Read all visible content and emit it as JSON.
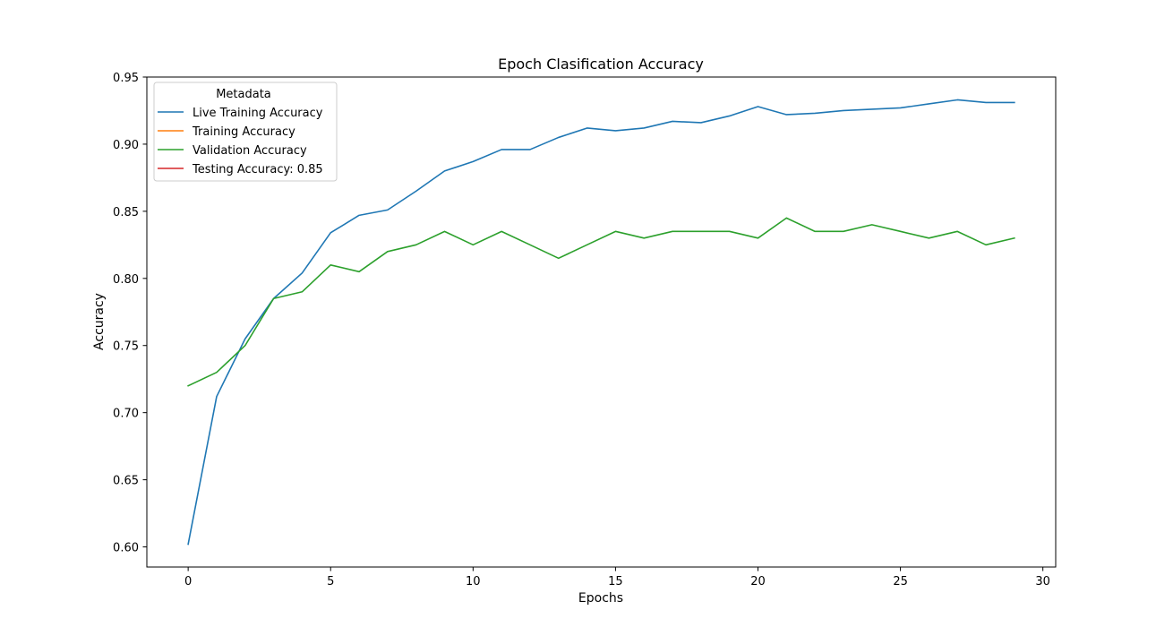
{
  "chart_data": {
    "type": "line",
    "title": "Epoch Clasification Accuracy",
    "xlabel": "Epochs",
    "ylabel": "Accuracy",
    "xlim": [
      -1.45,
      30.45
    ],
    "ylim": [
      0.585,
      0.95
    ],
    "xticks": [
      0,
      5,
      10,
      15,
      20,
      25,
      30
    ],
    "yticks": [
      0.6,
      0.65,
      0.7,
      0.75,
      0.8,
      0.85,
      0.9,
      0.95
    ],
    "ytick_labels": [
      "0.60",
      "0.65",
      "0.70",
      "0.75",
      "0.80",
      "0.85",
      "0.90",
      "0.95"
    ],
    "grid": false,
    "legend": {
      "title": "Metadata",
      "placement": "top-left"
    },
    "series": [
      {
        "name": "Live Training Accuracy",
        "color": "#1f77b4",
        "x": [
          0,
          1,
          2,
          3,
          4,
          5,
          6,
          7,
          8,
          9,
          10,
          11,
          12,
          13,
          14,
          15,
          16,
          17,
          18,
          19,
          20,
          21,
          22,
          23,
          24,
          25,
          26,
          27,
          28,
          29
        ],
        "values": [
          0.602,
          0.712,
          0.755,
          0.785,
          0.804,
          0.834,
          0.847,
          0.851,
          0.865,
          0.88,
          0.887,
          0.896,
          0.896,
          0.905,
          0.912,
          0.91,
          0.912,
          0.917,
          0.916,
          0.921,
          0.928,
          0.922,
          0.923,
          0.925,
          0.926,
          0.927,
          0.93,
          0.933,
          0.931,
          0.931
        ]
      },
      {
        "name": "Training Accuracy",
        "color": "#ff7f0e",
        "x": [],
        "values": []
      },
      {
        "name": "Validation Accuracy",
        "color": "#2ca02c",
        "x": [
          0,
          1,
          2,
          3,
          4,
          5,
          6,
          7,
          8,
          9,
          10,
          11,
          12,
          13,
          14,
          15,
          16,
          17,
          18,
          19,
          20,
          21,
          22,
          23,
          24,
          25,
          26,
          27,
          28,
          29
        ],
        "values": [
          0.72,
          0.73,
          0.75,
          0.785,
          0.79,
          0.81,
          0.805,
          0.82,
          0.825,
          0.835,
          0.825,
          0.835,
          0.825,
          0.815,
          0.825,
          0.835,
          0.83,
          0.835,
          0.835,
          0.835,
          0.83,
          0.845,
          0.835,
          0.835,
          0.84,
          0.835,
          0.83,
          0.835,
          0.825,
          0.83
        ]
      },
      {
        "name": "Testing Accuracy: 0.85",
        "color": "#d62728",
        "x": [],
        "values": []
      }
    ]
  }
}
